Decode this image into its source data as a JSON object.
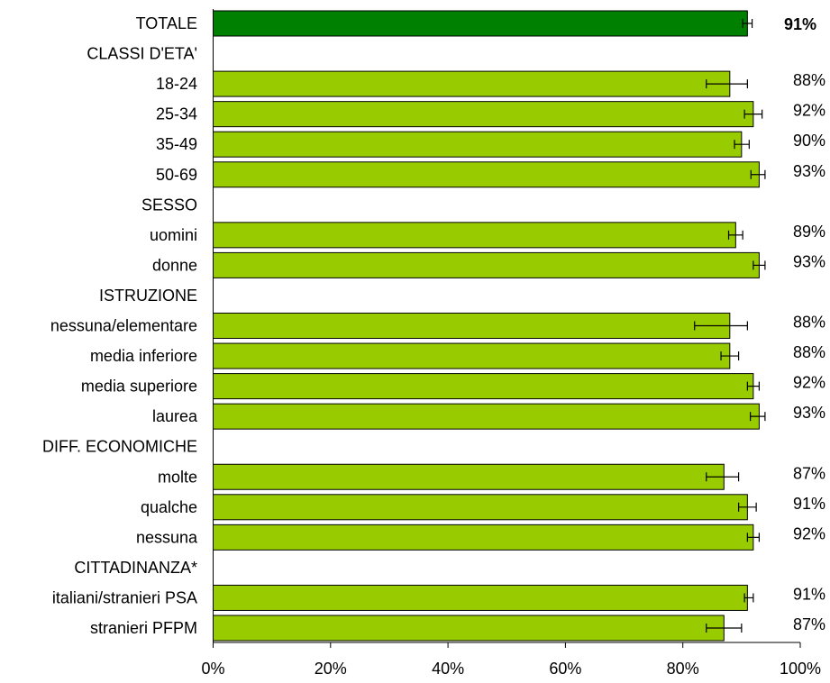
{
  "chart_data": {
    "type": "bar",
    "orientation": "horizontal",
    "xlim": [
      0,
      100
    ],
    "x_ticks": [
      "0%",
      "20%",
      "40%",
      "60%",
      "80%",
      "100%"
    ],
    "x_tick_values": [
      0,
      20,
      40,
      60,
      80,
      100
    ],
    "grid": false,
    "colors": {
      "total": "#008000",
      "category": "#99cc00",
      "errorbar": "#000000",
      "border": "#000000"
    },
    "rows": [
      {
        "label": "TOTALE",
        "value": 91,
        "value_label": "91%",
        "err": [
          90.2,
          91.8
        ],
        "kind": "total"
      },
      {
        "label": "CLASSI D'ETA'",
        "kind": "header"
      },
      {
        "label": "18-24",
        "value": 88,
        "value_label": "88%",
        "err": [
          84.0,
          91.0
        ],
        "kind": "category"
      },
      {
        "label": "25-34",
        "value": 92,
        "value_label": "92%",
        "err": [
          90.5,
          93.5
        ],
        "kind": "category"
      },
      {
        "label": "35-49",
        "value": 90,
        "value_label": "90%",
        "err": [
          88.8,
          91.3
        ],
        "kind": "category"
      },
      {
        "label": "50-69",
        "value": 93,
        "value_label": "93%",
        "err": [
          91.6,
          94.0
        ],
        "kind": "category"
      },
      {
        "label": "SESSO",
        "kind": "header"
      },
      {
        "label": "uomini",
        "value": 89,
        "value_label": "89%",
        "err": [
          87.8,
          90.2
        ],
        "kind": "category"
      },
      {
        "label": "donne",
        "value": 93,
        "value_label": "93%",
        "err": [
          92.0,
          94.0
        ],
        "kind": "category"
      },
      {
        "label": "ISTRUZIONE",
        "kind": "header"
      },
      {
        "label": "nessuna/elementare",
        "value": 88,
        "value_label": "88%",
        "err": [
          82.0,
          91.0
        ],
        "kind": "category"
      },
      {
        "label": "media inferiore",
        "value": 88,
        "value_label": "88%",
        "err": [
          86.5,
          89.5
        ],
        "kind": "category"
      },
      {
        "label": "media superiore",
        "value": 92,
        "value_label": "92%",
        "err": [
          91.0,
          93.0
        ],
        "kind": "category"
      },
      {
        "label": "laurea",
        "value": 93,
        "value_label": "93%",
        "err": [
          91.5,
          94.0
        ],
        "kind": "category"
      },
      {
        "label": "DIFF. ECONOMICHE",
        "kind": "header"
      },
      {
        "label": "molte",
        "value": 87,
        "value_label": "87%",
        "err": [
          84.0,
          89.5
        ],
        "kind": "category"
      },
      {
        "label": "qualche",
        "value": 91,
        "value_label": "91%",
        "err": [
          89.5,
          92.5
        ],
        "kind": "category"
      },
      {
        "label": "nessuna",
        "value": 92,
        "value_label": "92%",
        "err": [
          91.0,
          93.0
        ],
        "kind": "category"
      },
      {
        "label": "CITTADINANZA*",
        "kind": "header"
      },
      {
        "label": "italiani/stranieri PSA",
        "value": 91,
        "value_label": "91%",
        "err": [
          90.5,
          92.0
        ],
        "kind": "category"
      },
      {
        "label": "stranieri PFPM",
        "value": 87,
        "value_label": "87%",
        "err": [
          84.0,
          90.0
        ],
        "kind": "category"
      }
    ]
  }
}
